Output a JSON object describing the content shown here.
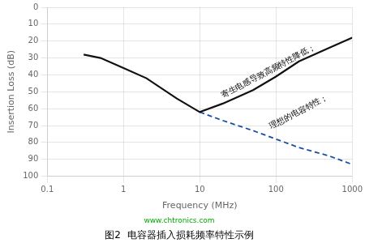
{
  "chart_data": {
    "type": "line",
    "title": "图2  电容器插入损耗频率特性示例",
    "subtitle": "www.chtronics.com",
    "x_label": "Frequency (MHz)",
    "y_label": "Insertion Loss (dB)",
    "log": "x",
    "xlim": [
      0.1,
      1000
    ],
    "ylim": [
      100,
      0
    ],
    "xticks": [
      0.1,
      1,
      10,
      100,
      1000
    ],
    "yticks": [
      0,
      10,
      20,
      30,
      40,
      50,
      60,
      70,
      80,
      90,
      100
    ],
    "grid": true,
    "series": [
      {
        "color": "#111111",
        "line_style": "solid",
        "x": [
          0.3,
          0.5,
          1.0,
          2.0,
          5.0,
          10.0,
          20.0,
          50.0,
          100.0,
          200.0,
          500.0,
          1000.0
        ],
        "values": [
          28,
          30,
          36,
          42,
          54,
          62,
          57,
          49,
          41,
          32,
          24,
          18
        ]
      },
      {
        "color": "#1a4fa0",
        "line_style": "dashed",
        "x": [
          10.0,
          20.0,
          50.0,
          100.0,
          200.0,
          500.0,
          1000.0
        ],
        "values": [
          62,
          67,
          73,
          78,
          83,
          88,
          93
        ]
      }
    ],
    "annotations": [
      {
        "text": "寄生电感导致高频特性降低；",
        "x": 79.43282347242815,
        "y": 38
      },
      {
        "text": "理想的电容特性；",
        "x": 199.52623149688796,
        "y": 62
      }
    ]
  }
}
